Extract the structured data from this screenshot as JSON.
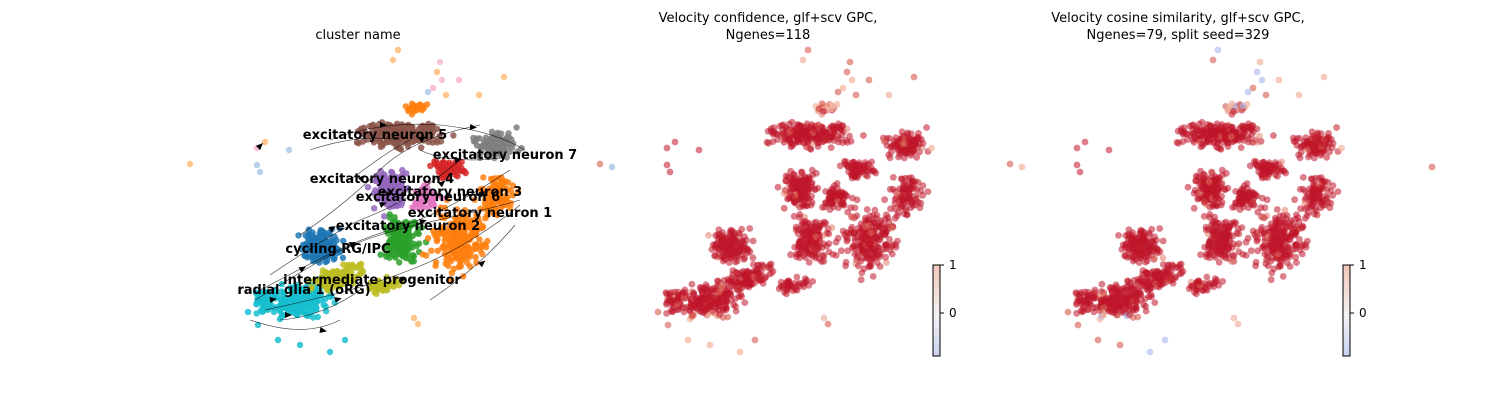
{
  "chart_data": [
    {
      "type": "scatter",
      "title": "cluster name",
      "xlabel": "",
      "ylabel": "",
      "grid": false,
      "overlay": "velocity streamlines with arrowheads",
      "clusters": [
        {
          "name": "excitatory neuron 5",
          "color": "#8c564b"
        },
        {
          "name": "excitatory neuron 7",
          "color": "#7f7f7f"
        },
        {
          "name": "excitatory neuron 4",
          "color": "#9467bd"
        },
        {
          "name": "excitatory neuron 3",
          "color": "#e377c2"
        },
        {
          "name": "excitatory neuron 6",
          "color": "#d62728"
        },
        {
          "name": "excitatory neuron 1",
          "color": "#ff7f0e"
        },
        {
          "name": "excitatory neuron 2",
          "color": "#2ca02c"
        },
        {
          "name": "cycling RG/IPC",
          "color": "#1f77b4"
        },
        {
          "name": "intermediate progenitor",
          "color": "#bcbd22"
        },
        {
          "name": "radial glia 1 (oRG)",
          "color": "#17becf"
        }
      ],
      "extra_colors": {
        "light_orange": "#ffbb78",
        "light_green": "#98df8a",
        "light_pink": "#f7b6d2",
        "light_purple": "#c5b0d5",
        "light_blue": "#aec7e8"
      }
    },
    {
      "type": "scatter",
      "title_lines": [
        "Velocity confidence, glf+scv GPC,",
        "Ngenes=118"
      ],
      "xlabel": "",
      "ylabel": "",
      "grid": false,
      "colormap": "coolwarm",
      "colorbar": {
        "ticks": [
          {
            "value": 1,
            "label": "1"
          },
          {
            "value": 0,
            "label": "0"
          }
        ],
        "range": [
          -0.9,
          1.0
        ]
      },
      "dominant_color": "#c0152a"
    },
    {
      "type": "scatter",
      "title_lines": [
        "Velocity cosine similarity, glf+scv GPC,",
        "Ngenes=79, split seed=329"
      ],
      "xlabel": "",
      "ylabel": "",
      "grid": false,
      "colormap": "coolwarm",
      "colorbar": {
        "ticks": [
          {
            "value": 1,
            "label": "1"
          },
          {
            "value": 0,
            "label": "0"
          }
        ],
        "range": [
          -0.9,
          1.0
        ]
      },
      "dominant_color": "#c0152a"
    }
  ]
}
